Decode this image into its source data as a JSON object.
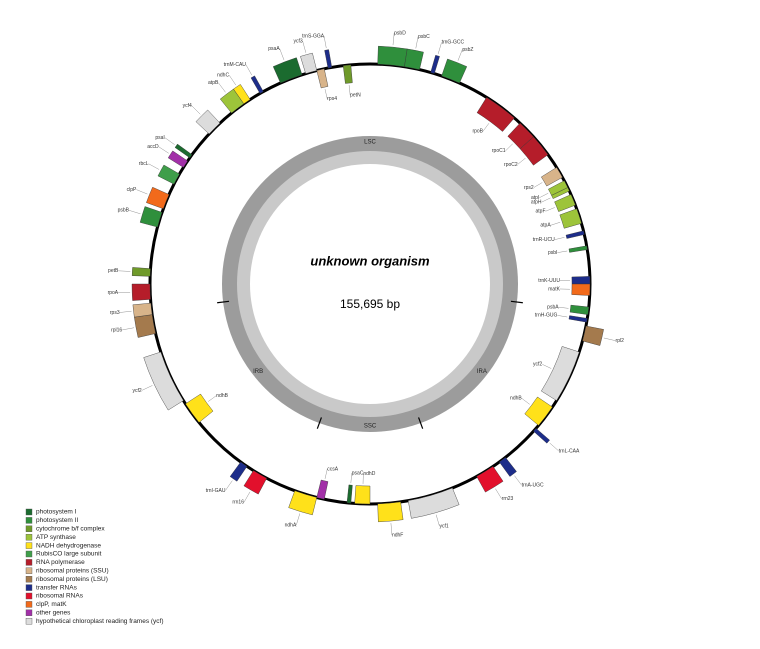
{
  "title": "unknown organism",
  "size": "155,695 bp",
  "regions": [
    "LSC",
    "IRA",
    "SSC",
    "IRB"
  ],
  "legend": [
    {
      "label": "photosystem I",
      "color": "#1b6b2f"
    },
    {
      "label": "photosystem II",
      "color": "#2f8f3c"
    },
    {
      "label": "cytochrome b/f complex",
      "color": "#6f9a2a"
    },
    {
      "label": "ATP synthase",
      "color": "#9dc43a"
    },
    {
      "label": "NADH dehydrogenase",
      "color": "#ffe11a"
    },
    {
      "label": "RubisCO large subunit",
      "color": "#3f9e4a"
    },
    {
      "label": "RNA polymerase",
      "color": "#b51d2a"
    },
    {
      "label": "ribosomal proteins (SSU)",
      "color": "#d8b48a"
    },
    {
      "label": "ribosomal proteins (LSU)",
      "color": "#a47a4d"
    },
    {
      "label": "transfer RNAs",
      "color": "#1d2d8a"
    },
    {
      "label": "ribosomal RNAs",
      "color": "#e2102c"
    },
    {
      "label": "clpP, matK",
      "color": "#f26a1b"
    },
    {
      "label": "other genes",
      "color": "#a230a8"
    },
    {
      "label": "hypothetical chloroplast reading frames (ycf)",
      "color": "#dcdcdc"
    }
  ],
  "genes": [
    {
      "name": "psbD",
      "group": 1
    },
    {
      "name": "psbC",
      "group": 1
    },
    {
      "name": "trnG-GCC",
      "group": 9
    },
    {
      "name": "psbZ",
      "group": 1
    },
    {
      "name": "rpoB",
      "group": 6
    },
    {
      "name": "rpoC1",
      "group": 6
    },
    {
      "name": "rpoC2",
      "group": 6
    },
    {
      "name": "rps2",
      "group": 7
    },
    {
      "name": "atpI",
      "group": 3
    },
    {
      "name": "atpH",
      "group": 3
    },
    {
      "name": "atpF",
      "group": 3
    },
    {
      "name": "atpA",
      "group": 3
    },
    {
      "name": "trnR-UCU",
      "group": 9
    },
    {
      "name": "psbI",
      "group": 1
    },
    {
      "name": "trnK-UUU",
      "group": 9
    },
    {
      "name": "matK",
      "group": 11
    },
    {
      "name": "psbA",
      "group": 1
    },
    {
      "name": "trnH-GUG",
      "group": 9
    },
    {
      "name": "rpl2",
      "group": 8
    },
    {
      "name": "ycf2",
      "group": 13
    },
    {
      "name": "ndhB",
      "group": 4
    },
    {
      "name": "trnL-CAA",
      "group": 9
    },
    {
      "name": "rrn23",
      "group": 10
    },
    {
      "name": "trnA-UGC",
      "group": 9
    },
    {
      "name": "ycf1",
      "group": 13
    },
    {
      "name": "ndhF",
      "group": 4
    },
    {
      "name": "ndhD",
      "group": 4
    },
    {
      "name": "psaC",
      "group": 0
    },
    {
      "name": "ndhA",
      "group": 4
    },
    {
      "name": "ccsA",
      "group": 12
    },
    {
      "name": "rrn16",
      "group": 10
    },
    {
      "name": "trnI-GAU",
      "group": 9
    },
    {
      "name": "ndhB",
      "group": 4
    },
    {
      "name": "ycf2",
      "group": 13
    },
    {
      "name": "rpl16",
      "group": 8
    },
    {
      "name": "rps3",
      "group": 7
    },
    {
      "name": "rpoA",
      "group": 6
    },
    {
      "name": "petB",
      "group": 2
    },
    {
      "name": "clpP",
      "group": 11
    },
    {
      "name": "psbB",
      "group": 1
    },
    {
      "name": "rbcL",
      "group": 5
    },
    {
      "name": "accD",
      "group": 12
    },
    {
      "name": "psaI",
      "group": 0
    },
    {
      "name": "ycf4",
      "group": 13
    },
    {
      "name": "atpB",
      "group": 3
    },
    {
      "name": "ndhC",
      "group": 4
    },
    {
      "name": "trnM-CAU",
      "group": 9
    },
    {
      "name": "psaA",
      "group": 0
    },
    {
      "name": "ycf3",
      "group": 13
    },
    {
      "name": "rps4",
      "group": 7
    },
    {
      "name": "trnS-GGA",
      "group": 9
    },
    {
      "name": "petN",
      "group": 2
    }
  ]
}
